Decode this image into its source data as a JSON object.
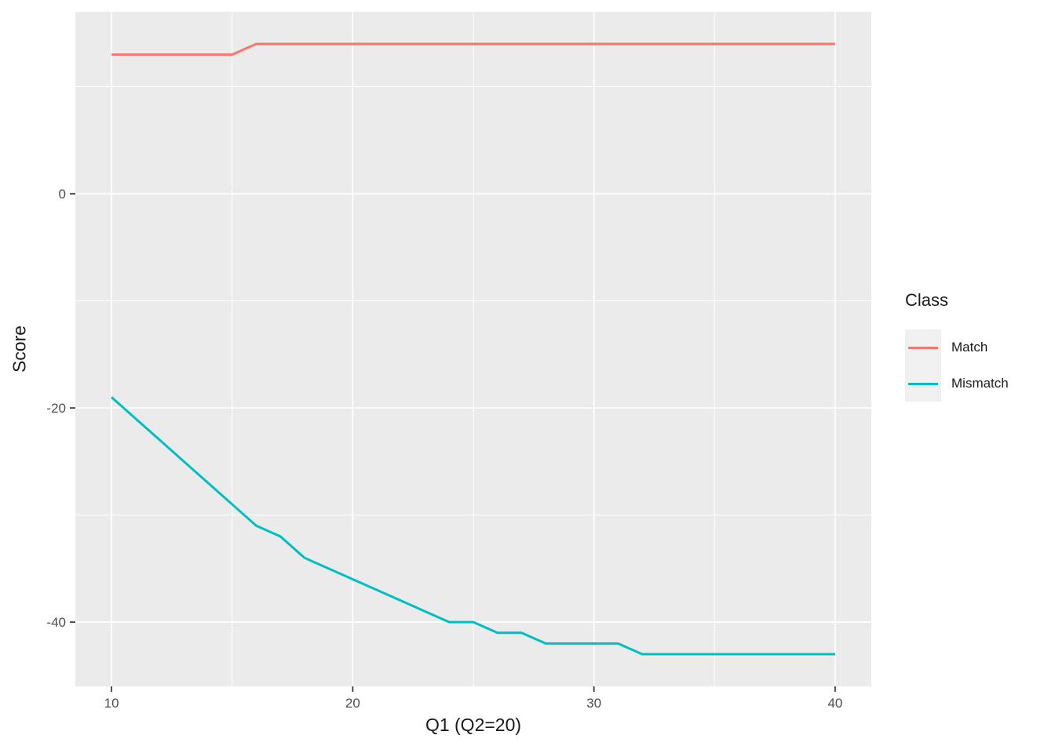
{
  "chart_data": {
    "type": "line",
    "title": "",
    "xlabel": "Q1 (Q2=20)",
    "ylabel": "Score",
    "x": [
      10,
      11,
      12,
      13,
      14,
      15,
      16,
      17,
      18,
      19,
      20,
      21,
      22,
      23,
      24,
      25,
      26,
      27,
      28,
      29,
      30,
      31,
      32,
      33,
      34,
      35,
      36,
      37,
      38,
      39,
      40
    ],
    "series": [
      {
        "name": "Match",
        "color": "#F8766D",
        "values": [
          13,
          13,
          13,
          13,
          13,
          13,
          14,
          14,
          14,
          14,
          14,
          14,
          14,
          14,
          14,
          14,
          14,
          14,
          14,
          14,
          14,
          14,
          14,
          14,
          14,
          14,
          14,
          14,
          14,
          14,
          14
        ]
      },
      {
        "name": "Mismatch",
        "color": "#00BFC4",
        "values": [
          -19,
          -21,
          -23,
          -25,
          -27,
          -29,
          -31,
          -32,
          -34,
          -35,
          -36,
          -37,
          -38,
          -39,
          -40,
          -40,
          -41,
          -41,
          -42,
          -42,
          -42,
          -42,
          -43,
          -43,
          -43,
          -43,
          -43,
          -43,
          -43,
          -43,
          -43
        ]
      }
    ],
    "legend": {
      "title": "Class",
      "position": "right",
      "entries": [
        "Match",
        "Mismatch"
      ]
    },
    "axes": {
      "x": {
        "ticks": [
          10,
          20,
          30,
          40
        ],
        "tick_labels": [
          "10",
          "20",
          "30",
          "40"
        ],
        "minor_ticks": [
          15,
          25,
          35
        ],
        "range": [
          8.5,
          41.5
        ]
      },
      "y": {
        "ticks": [
          0,
          -20,
          -40
        ],
        "tick_labels": [
          "0",
          "-20",
          "-40"
        ],
        "minor_ticks": [
          10,
          -10,
          -30
        ],
        "range": [
          -46,
          17
        ]
      }
    },
    "grid": true,
    "style": {
      "panel_bg": "#EBEBEB",
      "grid_color": "#FFFFFF",
      "tick_label_color": "#4D4D4D",
      "tick_mark_color": "#333333",
      "axis_title_color": "#1A1A1A",
      "legend_key_bg": "#F0F0F0",
      "line_width": 3
    }
  }
}
